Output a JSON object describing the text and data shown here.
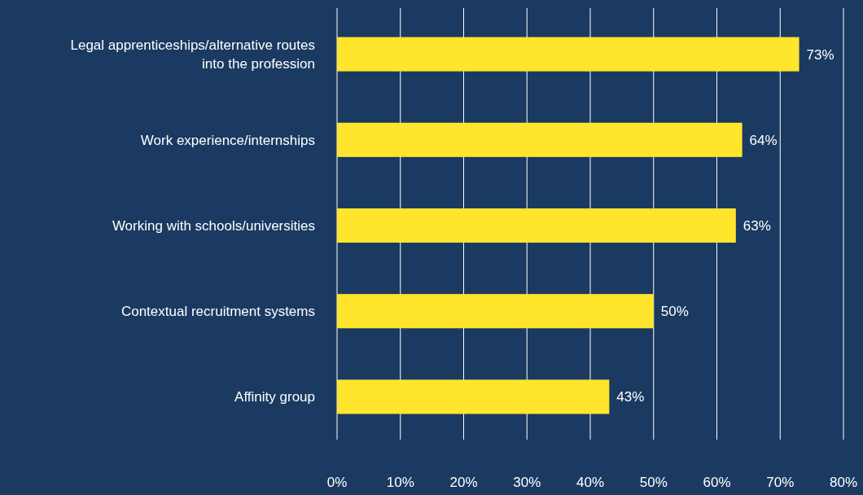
{
  "chart_data": {
    "type": "bar",
    "orientation": "horizontal",
    "categories": [
      "Legal apprenticeships/alternative routes into the profession",
      "Work experience/internships",
      "Working with schools/universities",
      "Contextual recruitment systems",
      "Affinity group"
    ],
    "values": [
      73,
      64,
      63,
      50,
      43
    ],
    "value_labels": [
      "73%",
      "64%",
      "63%",
      "50%",
      "43%"
    ],
    "color": "#ffe52c",
    "xlim": [
      0,
      80
    ],
    "xticks": [
      {
        "value": 0,
        "label": "0%"
      },
      {
        "value": 10,
        "label": "10%"
      },
      {
        "value": 20,
        "label": "20%"
      },
      {
        "value": 30,
        "label": "30%"
      },
      {
        "value": 40,
        "label": "40%"
      },
      {
        "value": 50,
        "label": "50%"
      },
      {
        "value": 60,
        "label": "60%"
      },
      {
        "value": 70,
        "label": "70%"
      },
      {
        "value": 80,
        "label": "80%"
      }
    ],
    "grid": "x"
  }
}
